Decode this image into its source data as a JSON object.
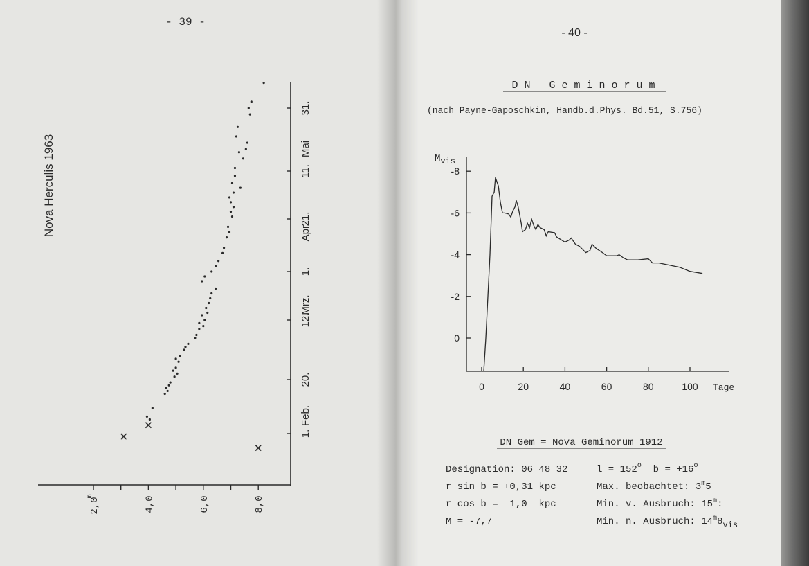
{
  "left_page": {
    "page_number": "- 39 -",
    "chart_title": "Nova Herculis 1963",
    "month_labels": [
      "Feb.",
      "Mrz.",
      "Apr.",
      "Mai"
    ],
    "date_tick_labels": [
      "1.",
      "20.",
      "12.",
      "1.",
      "21.",
      "11.",
      "31."
    ],
    "mag_tick_labels": [
      "2,0",
      "4,0",
      "6,0",
      "8,0"
    ],
    "mag_unit": "m"
  },
  "right_page": {
    "page_number": "- 40 -",
    "title": "D N   G e m i n o r u m",
    "source": "(nach Payne-Gaposchkin, Handb.d.Phys. Bd.51, S.756)",
    "y_axis_label": "M",
    "y_axis_label_sub": "vis",
    "x_axis_label": "Tage",
    "y_tick_labels": [
      "-8",
      "-6",
      "-4",
      "-2",
      "0"
    ],
    "x_tick_labels": [
      "0",
      "20",
      "40",
      "60",
      "80",
      "100"
    ],
    "info_title": "DN Gem = Nova Geminorum 1912",
    "info_left": [
      "Designation: 06 48 32",
      "r sin b = +0,31 kpc",
      "r cos b =  1,0  kpc",
      "M = -7,7"
    ],
    "info_right": {
      "coords": {
        "l": "l = 152",
        "b": "b = +16",
        "deg": "o"
      },
      "max": {
        "label": "Max. beobachtet: ",
        "value": "3",
        "sup": "m",
        "rest": "5"
      },
      "min_before": {
        "label": "Min. v. Ausbruch: ",
        "value": "15",
        "sup": "m",
        "rest": ":"
      },
      "min_after": {
        "label": "Min. n. Ausbruch: ",
        "value": "14",
        "sup": "m",
        "rest": "8",
        "sub": "vis"
      }
    }
  },
  "colors": {
    "ink": "#2a2a2a",
    "paper_left": "#e6e6e3",
    "paper_right": "#ecece9"
  },
  "chart_data": [
    {
      "type": "scatter",
      "title": "Nova Herculis 1963",
      "orientation": "rotated 90 degrees (time axis vertical, magnitude axis horizontal)",
      "xlabel": "",
      "ylabel": "",
      "magnitude_ticks": [
        2.0,
        4.0,
        6.0,
        8.0
      ],
      "date_ticks": [
        "1963-02-01",
        "1963-02-20",
        "1963-03-12",
        "1963-04-01",
        "1963-04-21",
        "1963-05-11",
        "1963-05-31"
      ],
      "series": [
        {
          "marker": "x",
          "points": [
            [
              "1963-01-31",
              3.1
            ],
            [
              "1963-02-04",
              4.0
            ],
            [
              "1963-01-27",
              8.0
            ]
          ]
        },
        {
          "marker": "dot",
          "points": [
            [
              "1963-02-07",
              3.95
            ],
            [
              "1963-02-06",
              4.05
            ],
            [
              "1963-02-10",
              4.15
            ],
            [
              "1963-02-15",
              4.6
            ],
            [
              "1963-02-16",
              4.7
            ],
            [
              "1963-02-17",
              4.65
            ],
            [
              "1963-02-18",
              4.75
            ],
            [
              "1963-02-19",
              4.8
            ],
            [
              "1963-02-21",
              4.95
            ],
            [
              "1963-02-22",
              5.05
            ],
            [
              "1963-02-23",
              4.9
            ],
            [
              "1963-02-24",
              5.0
            ],
            [
              "1963-02-26",
              5.1
            ],
            [
              "1963-02-27",
              5.0
            ],
            [
              "1963-02-28",
              5.15
            ],
            [
              "1963-03-02",
              5.3
            ],
            [
              "1963-03-03",
              5.35
            ],
            [
              "1963-03-04",
              5.45
            ],
            [
              "1963-03-06",
              5.7
            ],
            [
              "1963-03-07",
              5.75
            ],
            [
              "1963-03-09",
              5.85
            ],
            [
              "1963-03-10",
              6.0
            ],
            [
              "1963-03-11",
              5.85
            ],
            [
              "1963-03-12",
              6.05
            ],
            [
              "1963-03-14",
              5.95
            ],
            [
              "1963-03-15",
              6.15
            ],
            [
              "1963-03-17",
              6.1
            ],
            [
              "1963-03-19",
              6.2
            ],
            [
              "1963-03-21",
              6.25
            ],
            [
              "1963-03-23",
              6.3
            ],
            [
              "1963-03-25",
              6.45
            ],
            [
              "1963-03-28",
              5.95
            ],
            [
              "1963-03-30",
              6.05
            ],
            [
              "1963-04-01",
              6.3
            ],
            [
              "1963-04-03",
              6.45
            ],
            [
              "1963-04-05",
              6.55
            ],
            [
              "1963-04-08",
              6.7
            ],
            [
              "1963-04-10",
              6.75
            ],
            [
              "1963-04-14",
              6.85
            ],
            [
              "1963-04-16",
              6.95
            ],
            [
              "1963-04-18",
              6.9
            ],
            [
              "1963-04-22",
              7.05
            ],
            [
              "1963-04-24",
              7.0
            ],
            [
              "1963-04-26",
              7.1
            ],
            [
              "1963-04-28",
              7.0
            ],
            [
              "1963-04-30",
              6.95
            ],
            [
              "1963-05-02",
              7.1
            ],
            [
              "1963-05-04",
              7.35
            ],
            [
              "1963-05-06",
              7.05
            ],
            [
              "1963-05-09",
              7.15
            ],
            [
              "1963-05-12",
              7.15
            ],
            [
              "1963-05-15",
              7.45
            ],
            [
              "1963-05-17",
              7.3
            ],
            [
              "1963-05-18",
              7.55
            ],
            [
              "1963-05-20",
              7.6
            ],
            [
              "1963-05-22",
              7.2
            ],
            [
              "1963-05-25",
              7.25
            ],
            [
              "1963-05-29",
              7.7
            ],
            [
              "1963-05-31",
              7.65
            ],
            [
              "1963-06-02",
              7.75
            ],
            [
              "1963-06-08",
              8.2
            ]
          ]
        }
      ]
    },
    {
      "type": "line",
      "title": "D N Geminorum",
      "xlabel": "Tage",
      "ylabel": "Mvis",
      "xlim": [
        0,
        118
      ],
      "ylim": [
        1.6,
        -8.6
      ],
      "x_ticks": [
        0,
        20,
        40,
        60,
        80,
        100
      ],
      "y_ticks": [
        -8,
        -6,
        -4,
        -2,
        0
      ],
      "x": [
        1,
        2,
        4,
        5,
        6,
        6.6,
        8,
        9,
        10,
        11,
        13,
        14,
        15,
        16,
        16.6,
        17.5,
        19,
        19.6,
        21,
        22,
        23,
        24,
        25,
        26,
        27,
        28,
        30,
        31,
        32,
        35,
        36,
        40,
        42,
        43,
        45,
        47,
        49,
        50,
        52,
        53,
        55,
        58,
        60,
        65,
        66,
        68,
        70,
        75,
        80,
        82,
        85,
        90,
        95,
        100,
        106
      ],
      "y": [
        1.6,
        0,
        -4,
        -6.8,
        -7.0,
        -7.7,
        -7.3,
        -6.5,
        -6.0,
        -6.0,
        -5.95,
        -5.8,
        -6.1,
        -6.3,
        -6.6,
        -6.3,
        -5.5,
        -5.1,
        -5.2,
        -5.5,
        -5.3,
        -5.7,
        -5.4,
        -5.2,
        -5.45,
        -5.3,
        -5.2,
        -4.9,
        -5.1,
        -5.05,
        -4.85,
        -4.6,
        -4.7,
        -4.8,
        -4.5,
        -4.4,
        -4.2,
        -4.1,
        -4.2,
        -4.5,
        -4.3,
        -4.1,
        -3.95,
        -3.95,
        -4.0,
        -3.85,
        -3.75,
        -3.75,
        -3.8,
        -3.6,
        -3.6,
        -3.5,
        -3.4,
        -3.2,
        -3.1
      ]
    }
  ]
}
